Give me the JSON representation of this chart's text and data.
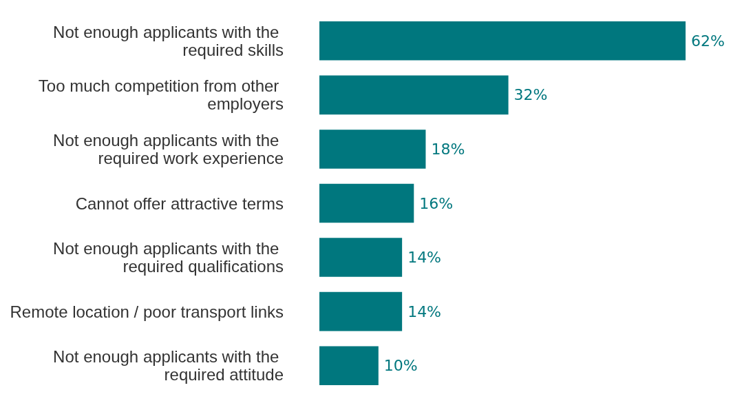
{
  "chart_data": {
    "type": "bar",
    "orientation": "horizontal",
    "categories": [
      "Not enough applicants with the required skills",
      "Too much competition from other employers",
      "Not enough applicants with the required work experience",
      "Cannot offer attractive terms",
      "Not enough applicants with the required qualifications",
      "Remote location / poor transport links",
      "Not enough applicants with the required attitude"
    ],
    "values": [
      62,
      32,
      18,
      16,
      14,
      14,
      10
    ],
    "value_labels": [
      "62%",
      "32%",
      "18%",
      "16%",
      "14%",
      "14%",
      "10%"
    ],
    "color": "#00777e"
  }
}
